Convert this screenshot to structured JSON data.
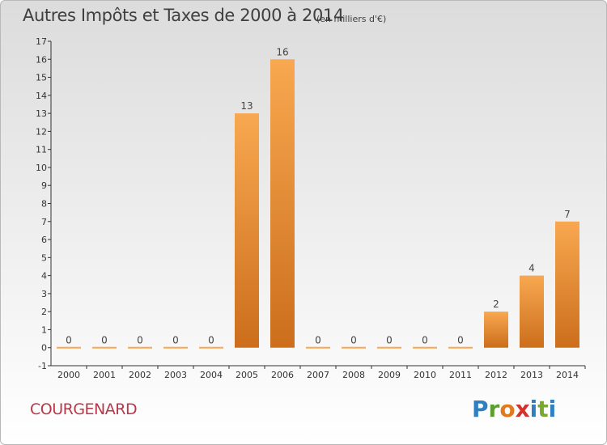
{
  "header": {
    "title": "Autres Impôts et Taxes de 2000 à 2014",
    "unit": "(en milliers d'€)"
  },
  "footer": {
    "commune": "COURGENARD",
    "logo": [
      "P",
      "r",
      "o",
      "x",
      "i",
      "t",
      "i"
    ]
  },
  "colors": {
    "bar_top": "#f8a850",
    "bar_bottom": "#cc6e1c",
    "axis": "#333333",
    "commune_text": "#b8384a"
  },
  "chart_data": {
    "type": "bar",
    "categories": [
      "2000",
      "2001",
      "2002",
      "2003",
      "2004",
      "2005",
      "2006",
      "2007",
      "2008",
      "2009",
      "2010",
      "2011",
      "2012",
      "2013",
      "2014"
    ],
    "values": [
      0,
      0,
      0,
      0,
      0,
      13,
      16,
      0,
      0,
      0,
      0,
      0,
      2,
      4,
      7
    ],
    "data_labels": [
      "0",
      "0",
      "0",
      "0",
      "0",
      "13",
      "16",
      "0",
      "0",
      "0",
      "0",
      "0",
      "2",
      "4",
      "7"
    ],
    "ylim": [
      -1,
      17
    ],
    "yticks": [
      -1,
      0,
      1,
      2,
      3,
      4,
      5,
      6,
      7,
      8,
      9,
      10,
      11,
      12,
      13,
      14,
      15,
      16,
      17
    ],
    "grid": false,
    "legend": "none"
  }
}
